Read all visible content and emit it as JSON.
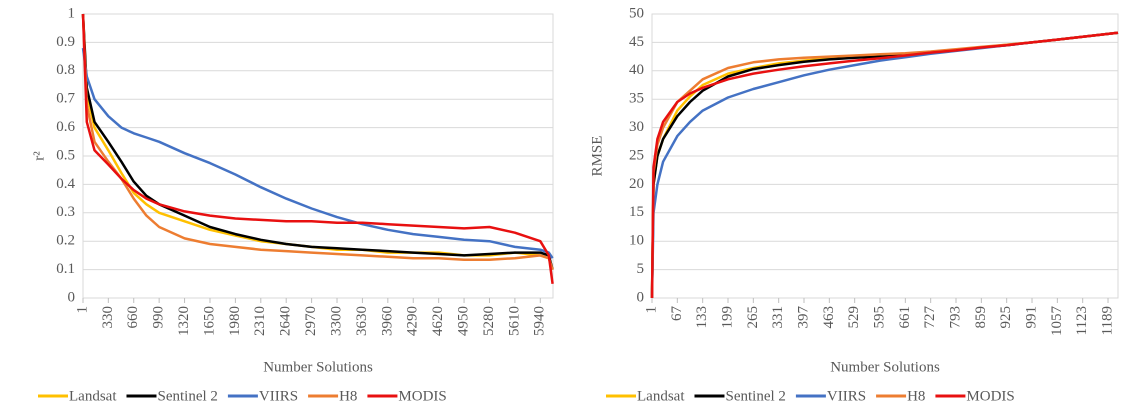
{
  "chart_data": [
    {
      "type": "line",
      "x_label": "Number Solutions",
      "y_label": "r²",
      "x": [
        1,
        50,
        150,
        330,
        500,
        660,
        825,
        990,
        1320,
        1650,
        1980,
        2310,
        2640,
        2970,
        3300,
        3630,
        3960,
        4290,
        4620,
        4950,
        5280,
        5610,
        5940,
        6050,
        6100
      ],
      "xlim": [
        1,
        6105
      ],
      "xticks": [
        1,
        330,
        660,
        990,
        1320,
        1650,
        1980,
        2310,
        2640,
        2970,
        3300,
        3630,
        3960,
        4290,
        4620,
        4950,
        5280,
        5610,
        5940
      ],
      "ylim": [
        0,
        1
      ],
      "yticks": [
        0,
        0.1,
        0.2,
        0.3,
        0.4,
        0.5,
        0.6,
        0.7,
        0.8,
        0.9,
        1
      ],
      "grid": true,
      "series": [
        {
          "name": "Landsat",
          "color": "#ffc000",
          "values": [
            1,
            0.72,
            0.6,
            0.52,
            0.44,
            0.37,
            0.33,
            0.3,
            0.27,
            0.24,
            0.22,
            0.2,
            0.19,
            0.18,
            0.17,
            0.17,
            0.16,
            0.16,
            0.16,
            0.15,
            0.15,
            0.16,
            0.15,
            0.14,
            0.1
          ]
        },
        {
          "name": "Sentinel 2",
          "color": "#000000",
          "values": [
            1,
            0.74,
            0.62,
            0.55,
            0.48,
            0.41,
            0.36,
            0.33,
            0.29,
            0.25,
            0.225,
            0.205,
            0.19,
            0.18,
            0.175,
            0.17,
            0.165,
            0.16,
            0.155,
            0.15,
            0.155,
            0.16,
            0.16,
            0.15,
            0.1
          ]
        },
        {
          "name": "VIIRS",
          "color": "#4472c4",
          "values": [
            0.88,
            0.78,
            0.7,
            0.64,
            0.6,
            0.58,
            0.565,
            0.55,
            0.51,
            0.475,
            0.435,
            0.39,
            0.35,
            0.315,
            0.285,
            0.26,
            0.24,
            0.225,
            0.215,
            0.205,
            0.2,
            0.18,
            0.17,
            0.16,
            0.14
          ]
        },
        {
          "name": "H8",
          "color": "#ed7d31",
          "values": [
            1,
            0.68,
            0.55,
            0.48,
            0.42,
            0.35,
            0.29,
            0.25,
            0.21,
            0.19,
            0.18,
            0.17,
            0.165,
            0.16,
            0.155,
            0.15,
            0.145,
            0.14,
            0.14,
            0.135,
            0.135,
            0.14,
            0.15,
            0.14,
            0.1
          ]
        },
        {
          "name": "MODIS",
          "color": "#e81010",
          "values": [
            1,
            0.62,
            0.52,
            0.47,
            0.42,
            0.38,
            0.35,
            0.33,
            0.305,
            0.29,
            0.28,
            0.275,
            0.27,
            0.27,
            0.265,
            0.265,
            0.26,
            0.255,
            0.25,
            0.245,
            0.25,
            0.23,
            0.2,
            0.15,
            0.05
          ]
        }
      ]
    },
    {
      "type": "line",
      "x_label": "Number Solutions",
      "y_label": "RMSE",
      "x": [
        1,
        5,
        15,
        30,
        67,
        100,
        133,
        199,
        265,
        331,
        397,
        463,
        529,
        595,
        661,
        727,
        793,
        859,
        925,
        991,
        1057,
        1123,
        1189,
        1215
      ],
      "xlim": [
        1,
        1215
      ],
      "xticks": [
        1,
        67,
        133,
        199,
        265,
        331,
        397,
        463,
        529,
        595,
        661,
        727,
        793,
        859,
        925,
        991,
        1057,
        1123,
        1189
      ],
      "ylim": [
        0,
        50
      ],
      "yticks": [
        0,
        5,
        10,
        15,
        20,
        25,
        30,
        35,
        40,
        45,
        50
      ],
      "grid": true,
      "series": [
        {
          "name": "Landsat",
          "color": "#ffc000",
          "values": [
            0,
            20,
            25,
            28,
            33,
            35.5,
            37.5,
            39.5,
            40.5,
            41.3,
            41.8,
            42.2,
            42.5,
            42.7,
            42.9,
            43.3,
            43.7,
            44.1,
            44.6,
            45,
            45.5,
            46,
            46.5,
            46.7
          ]
        },
        {
          "name": "Sentinel 2",
          "color": "#000000",
          "values": [
            0,
            20,
            25,
            28,
            32,
            34.5,
            36.5,
            39,
            40.3,
            41,
            41.6,
            42,
            42.3,
            42.5,
            42.8,
            43.2,
            43.6,
            44.1,
            44.5,
            45,
            45.5,
            46,
            46.5,
            46.7
          ]
        },
        {
          "name": "VIIRS",
          "color": "#4472c4",
          "values": [
            0,
            15,
            20,
            24,
            28.5,
            31,
            33,
            35.3,
            36.8,
            38,
            39.2,
            40.2,
            41,
            41.8,
            42.4,
            43,
            43.5,
            44,
            44.5,
            45,
            45.5,
            46,
            46.5,
            46.7
          ]
        },
        {
          "name": "H8",
          "color": "#ed7d31",
          "values": [
            0,
            22,
            27,
            30,
            34.5,
            36.5,
            38.5,
            40.5,
            41.5,
            42,
            42.3,
            42.5,
            42.7,
            42.9,
            43.1,
            43.4,
            43.8,
            44.2,
            44.6,
            45,
            45.5,
            46,
            46.5,
            46.7
          ]
        },
        {
          "name": "MODIS",
          "color": "#e81010",
          "values": [
            0,
            23,
            28,
            31,
            34.5,
            36,
            37,
            38.5,
            39.5,
            40.2,
            40.8,
            41.3,
            41.8,
            42.2,
            42.7,
            43.2,
            43.6,
            44.1,
            44.5,
            45,
            45.5,
            46,
            46.5,
            46.7
          ]
        }
      ]
    }
  ]
}
